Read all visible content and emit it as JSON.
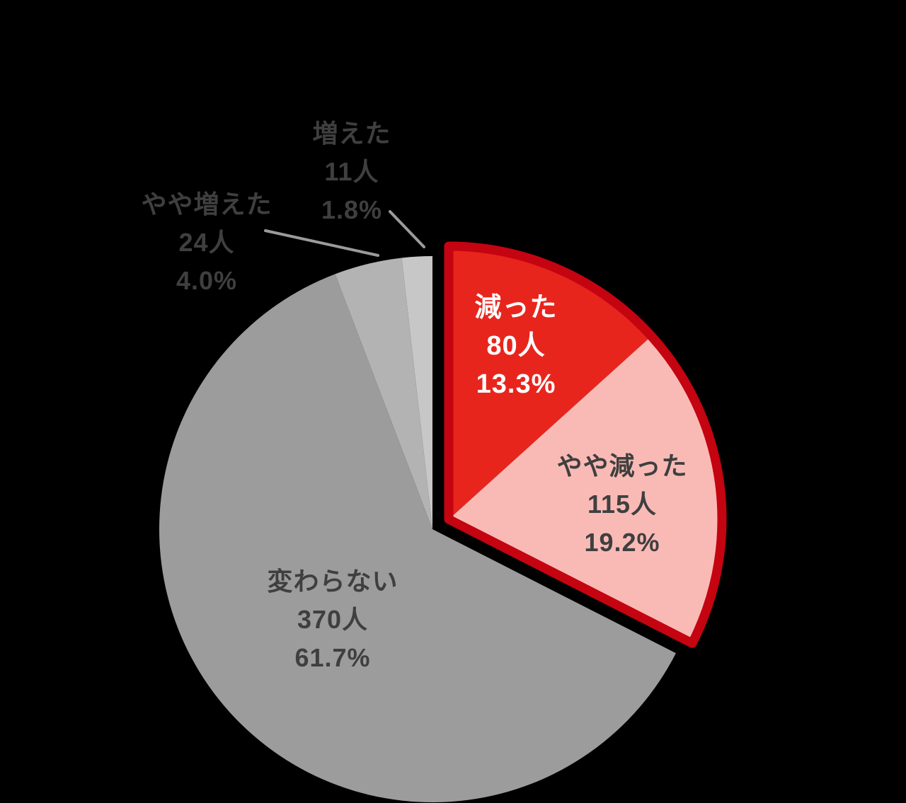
{
  "chart_data": {
    "type": "pie",
    "title": "",
    "direction": "clockwise",
    "start_angle_deg": 0,
    "background": "#000000",
    "explode_outline_color": "#c40410",
    "leader_line_color": "#9b9b9b",
    "slices": [
      {
        "label": "減った",
        "count": "80人",
        "percent_label": "13.3%",
        "value": 13.3,
        "color": "#e8251d",
        "text_color": "#ffffff",
        "bold": true,
        "exploded": true,
        "label_position": "inside"
      },
      {
        "label": "やや減った",
        "count": "115人",
        "percent_label": "19.2%",
        "value": 19.2,
        "color": "#f9bab6",
        "text_color": "#3f3f3f",
        "bold": false,
        "exploded": true,
        "label_position": "inside"
      },
      {
        "label": "変わらない",
        "count": "370人",
        "percent_label": "61.7%",
        "value": 61.7,
        "color": "#9c9c9c",
        "text_color": "#3f3f3f",
        "bold": false,
        "exploded": false,
        "label_position": "inside"
      },
      {
        "label": "やや増えた",
        "count": "24人",
        "percent_label": "4.0%",
        "value": 4.0,
        "color": "#b3b3b3",
        "text_color": "#3f3f3f",
        "bold": false,
        "exploded": false,
        "label_position": "outside"
      },
      {
        "label": "増えた",
        "count": "11人",
        "percent_label": "1.8%",
        "value": 1.8,
        "color": "#c7c7c7",
        "text_color": "#3f3f3f",
        "bold": false,
        "exploded": false,
        "label_position": "outside"
      }
    ]
  }
}
